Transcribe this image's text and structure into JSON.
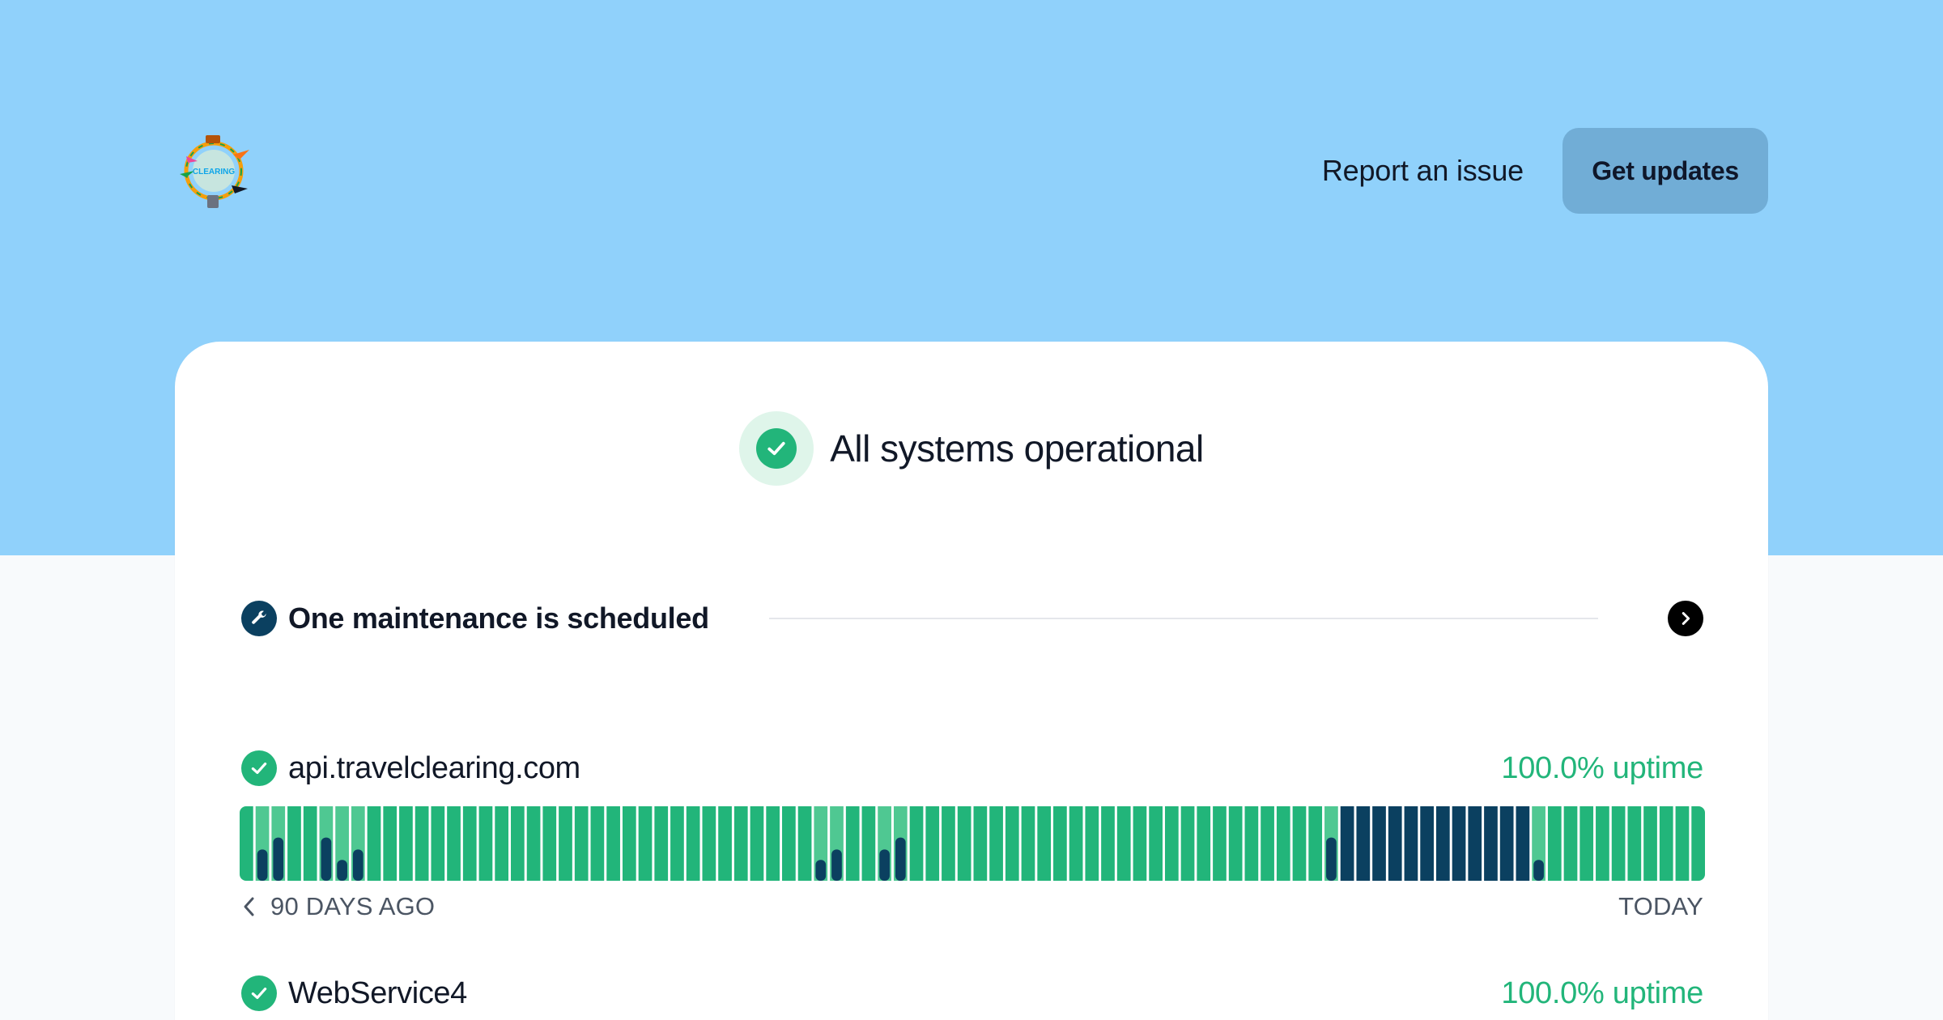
{
  "header": {
    "logo_text": "CLEARING",
    "report_label": "Report an issue",
    "updates_label": "Get updates"
  },
  "status": {
    "title": "All systems operational"
  },
  "maintenance": {
    "text": "One maintenance is scheduled"
  },
  "services": [
    {
      "name": "api.travelclearing.com",
      "uptime": "100.0% uptime",
      "range_start": "90 DAYS AGO",
      "range_end": "TODAY",
      "days": [
        0,
        1,
        1,
        0,
        0,
        1,
        1,
        1,
        0,
        0,
        0,
        0,
        0,
        0,
        0,
        0,
        0,
        0,
        0,
        0,
        0,
        0,
        0,
        0,
        0,
        0,
        0,
        0,
        0,
        0,
        0,
        0,
        0,
        0,
        0,
        0,
        1,
        1,
        0,
        0,
        1,
        1,
        0,
        0,
        0,
        0,
        0,
        0,
        0,
        0,
        0,
        0,
        0,
        0,
        0,
        0,
        0,
        0,
        0,
        0,
        0,
        0,
        0,
        0,
        0,
        0,
        0,
        0,
        1,
        2,
        2,
        2,
        2,
        2,
        2,
        2,
        2,
        2,
        2,
        2,
        2,
        1,
        0,
        0,
        0,
        0,
        0,
        0,
        0,
        0,
        0,
        0
      ]
    },
    {
      "name": "WebService4",
      "uptime": "100.0% uptime"
    }
  ],
  "colors": {
    "hero": "#90d1fb",
    "operational": "#22b57a",
    "maintenance": "#0b4060",
    "button": "#71add6"
  }
}
